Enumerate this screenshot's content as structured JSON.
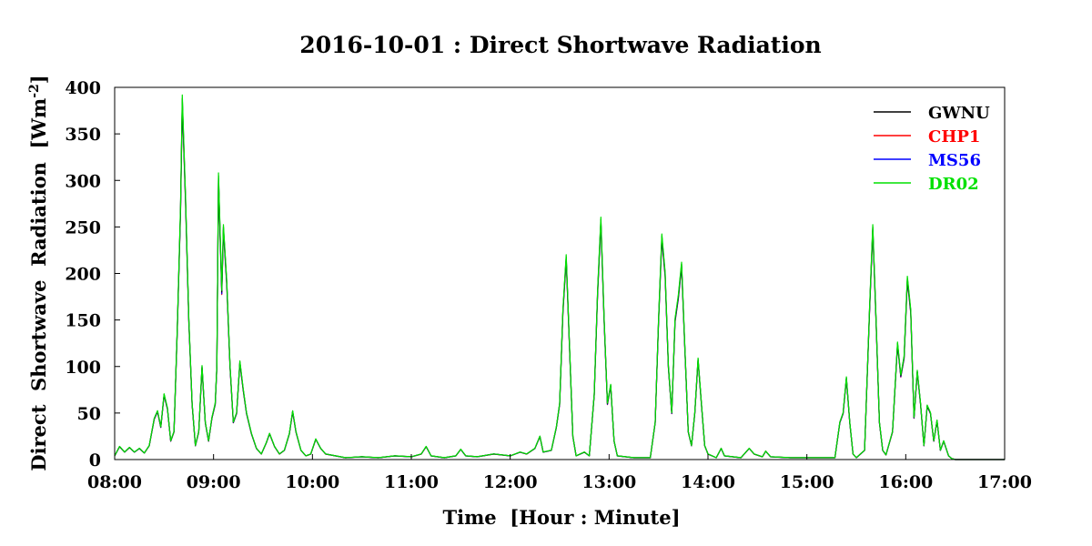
{
  "chart_data": {
    "type": "line",
    "title": "2016-10-01 : Direct Shortwave Radiation",
    "xlabel": "Time  [Hour : Minute]",
    "ylabel_main": "Direct  Shortwave  Radiation  [Wm",
    "ylabel_sup": "-2",
    "ylabel_close": "]",
    "xlim": [
      "08:00",
      "17:00"
    ],
    "ylim": [
      0,
      400
    ],
    "x_ticks": [
      "08:00",
      "09:00",
      "10:00",
      "11:00",
      "12:00",
      "13:00",
      "14:00",
      "15:00",
      "16:00",
      "17:00"
    ],
    "y_ticks": [
      0,
      50,
      100,
      150,
      200,
      250,
      300,
      350,
      400
    ],
    "grid": false,
    "legend_position": "top-right",
    "series": [
      {
        "name": "GWNU",
        "color": "#000000"
      },
      {
        "name": "CHP1",
        "color": "#ff0000"
      },
      {
        "name": "MS56",
        "color": "#0000ff"
      },
      {
        "name": "DR02",
        "color": "#00e000"
      }
    ],
    "profile": [
      [
        "08:00",
        4
      ],
      [
        "08:03",
        14
      ],
      [
        "08:06",
        8
      ],
      [
        "08:09",
        13
      ],
      [
        "08:12",
        8
      ],
      [
        "08:15",
        12
      ],
      [
        "08:18",
        7
      ],
      [
        "08:21",
        15
      ],
      [
        "08:24",
        44
      ],
      [
        "08:26",
        52
      ],
      [
        "08:28",
        35
      ],
      [
        "08:30",
        70
      ],
      [
        "08:32",
        55
      ],
      [
        "08:34",
        20
      ],
      [
        "08:36",
        30
      ],
      [
        "08:38",
        140
      ],
      [
        "08:40",
        270
      ],
      [
        "08:41",
        388
      ],
      [
        "08:43",
        280
      ],
      [
        "08:45",
        150
      ],
      [
        "08:47",
        60
      ],
      [
        "08:49",
        15
      ],
      [
        "08:51",
        30
      ],
      [
        "08:53",
        100
      ],
      [
        "08:55",
        40
      ],
      [
        "08:57",
        20
      ],
      [
        "08:59",
        45
      ],
      [
        "09:01",
        60
      ],
      [
        "09:02",
        100
      ],
      [
        "09:03",
        305
      ],
      [
        "09:05",
        180
      ],
      [
        "09:06",
        250
      ],
      [
        "09:08",
        190
      ],
      [
        "09:10",
        100
      ],
      [
        "09:12",
        40
      ],
      [
        "09:14",
        50
      ],
      [
        "09:16",
        105
      ],
      [
        "09:18",
        75
      ],
      [
        "09:20",
        50
      ],
      [
        "09:23",
        28
      ],
      [
        "09:26",
        12
      ],
      [
        "09:29",
        6
      ],
      [
        "09:32",
        18
      ],
      [
        "09:34",
        28
      ],
      [
        "09:37",
        14
      ],
      [
        "09:40",
        6
      ],
      [
        "09:43",
        10
      ],
      [
        "09:46",
        28
      ],
      [
        "09:48",
        52
      ],
      [
        "09:50",
        30
      ],
      [
        "09:53",
        10
      ],
      [
        "09:56",
        4
      ],
      [
        "09:59",
        6
      ],
      [
        "10:02",
        22
      ],
      [
        "10:05",
        12
      ],
      [
        "10:08",
        6
      ],
      [
        "10:14",
        4
      ],
      [
        "10:20",
        2
      ],
      [
        "10:30",
        3
      ],
      [
        "10:40",
        2
      ],
      [
        "10:50",
        4
      ],
      [
        "11:00",
        3
      ],
      [
        "11:06",
        6
      ],
      [
        "11:09",
        14
      ],
      [
        "11:12",
        4
      ],
      [
        "11:20",
        2
      ],
      [
        "11:27",
        4
      ],
      [
        "11:30",
        11
      ],
      [
        "11:33",
        4
      ],
      [
        "11:40",
        3
      ],
      [
        "11:50",
        6
      ],
      [
        "12:00",
        4
      ],
      [
        "12:06",
        8
      ],
      [
        "12:10",
        6
      ],
      [
        "12:15",
        12
      ],
      [
        "12:18",
        25
      ],
      [
        "12:20",
        8
      ],
      [
        "12:25",
        10
      ],
      [
        "12:28",
        35
      ],
      [
        "12:30",
        60
      ],
      [
        "12:32",
        160
      ],
      [
        "12:34",
        218
      ],
      [
        "12:36",
        120
      ],
      [
        "12:38",
        25
      ],
      [
        "12:40",
        4
      ],
      [
        "12:45",
        8
      ],
      [
        "12:48",
        4
      ],
      [
        "12:51",
        70
      ],
      [
        "12:53",
        180
      ],
      [
        "12:55",
        258
      ],
      [
        "12:57",
        150
      ],
      [
        "12:59",
        60
      ],
      [
        "13:01",
        80
      ],
      [
        "13:03",
        20
      ],
      [
        "13:05",
        4
      ],
      [
        "13:15",
        2
      ],
      [
        "13:25",
        2
      ],
      [
        "13:28",
        40
      ],
      [
        "13:30",
        150
      ],
      [
        "13:32",
        240
      ],
      [
        "13:34",
        200
      ],
      [
        "13:36",
        100
      ],
      [
        "13:38",
        50
      ],
      [
        "13:40",
        150
      ],
      [
        "13:42",
        175
      ],
      [
        "13:44",
        210
      ],
      [
        "13:46",
        120
      ],
      [
        "13:48",
        30
      ],
      [
        "13:50",
        15
      ],
      [
        "13:52",
        50
      ],
      [
        "13:54",
        108
      ],
      [
        "13:56",
        60
      ],
      [
        "13:58",
        15
      ],
      [
        "14:00",
        6
      ],
      [
        "14:05",
        2
      ],
      [
        "14:08",
        12
      ],
      [
        "14:10",
        4
      ],
      [
        "14:20",
        2
      ],
      [
        "14:25",
        12
      ],
      [
        "14:28",
        6
      ],
      [
        "14:33",
        3
      ],
      [
        "14:35",
        9
      ],
      [
        "14:38",
        3
      ],
      [
        "14:50",
        2
      ],
      [
        "15:10",
        2
      ],
      [
        "15:17",
        2
      ],
      [
        "15:20",
        40
      ],
      [
        "15:22",
        50
      ],
      [
        "15:24",
        88
      ],
      [
        "15:26",
        40
      ],
      [
        "15:28",
        6
      ],
      [
        "15:30",
        2
      ],
      [
        "15:35",
        10
      ],
      [
        "15:38",
        160
      ],
      [
        "15:40",
        250
      ],
      [
        "15:42",
        150
      ],
      [
        "15:44",
        40
      ],
      [
        "15:46",
        10
      ],
      [
        "15:48",
        5
      ],
      [
        "15:52",
        30
      ],
      [
        "15:55",
        125
      ],
      [
        "15:57",
        90
      ],
      [
        "15:59",
        110
      ],
      [
        "16:01",
        195
      ],
      [
        "16:03",
        160
      ],
      [
        "16:05",
        45
      ],
      [
        "16:07",
        95
      ],
      [
        "16:09",
        60
      ],
      [
        "16:11",
        15
      ],
      [
        "16:13",
        58
      ],
      [
        "16:15",
        50
      ],
      [
        "16:17",
        20
      ],
      [
        "16:19",
        42
      ],
      [
        "16:21",
        10
      ],
      [
        "16:23",
        20
      ],
      [
        "16:26",
        4
      ],
      [
        "16:28",
        1
      ],
      [
        "16:30",
        0
      ],
      [
        "17:00",
        0
      ]
    ]
  }
}
